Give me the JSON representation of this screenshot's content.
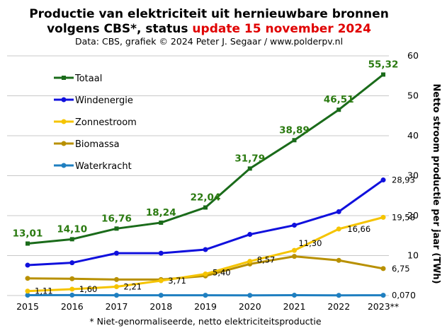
{
  "title_line1": "Productie van elektriciteit  uit hernieuwbare bronnen",
  "title_line2_prefix": "volgens CBS*, status ",
  "title_line2_highlight": "update 15 november 2024",
  "subtitle": "Data: CBS, grafiek © 2024 Peter J. Segaar / www.polderpv.nl",
  "footnote": "* Niet-genormaliseerde,  netto elektriciteitsproductie",
  "colors": {
    "totaal": "#1a6b1a",
    "wind": "#1010dd",
    "zon": "#f5c400",
    "biomassa": "#b89000",
    "water": "#1f7fc0",
    "grid": "#c8c8c8",
    "label_totaal": "#2a7a10",
    "highlight": "#e00000"
  },
  "chart_data": {
    "type": "line",
    "x": [
      "2015",
      "2016",
      "2017",
      "2018",
      "2019",
      "2020",
      "2021",
      "2022",
      "2023**"
    ],
    "ylabel": "Netto stroom productie per jaar (TWh)",
    "ylim": [
      0,
      60
    ],
    "yticks": [
      "0",
      "10",
      "20",
      "30",
      "40",
      "50",
      "60"
    ],
    "grid": true,
    "legend_position": "top-left",
    "series": [
      {
        "name": "Totaal",
        "key": "totaal",
        "values": [
          13.01,
          14.1,
          16.76,
          18.24,
          22.04,
          31.79,
          38.89,
          46.51,
          55.32
        ],
        "labels": [
          "13,01",
          "14,10",
          "16,76",
          "18,24",
          "22,04",
          "31,79",
          "38,89",
          "46,51",
          "55,32"
        ]
      },
      {
        "name": "Windenergie",
        "key": "wind",
        "values": [
          7.6,
          8.2,
          10.6,
          10.6,
          11.5,
          15.3,
          17.6,
          21.0,
          28.93
        ],
        "labels": [
          "",
          "",
          "",
          "",
          "",
          "",
          "",
          "",
          "28,93"
        ]
      },
      {
        "name": "Zonnestroom",
        "key": "zon",
        "values": [
          1.11,
          1.6,
          2.21,
          3.71,
          5.4,
          8.57,
          11.3,
          16.66,
          19.58
        ],
        "labels": [
          "1,11",
          "1,60",
          "2,21",
          "3,71",
          "5,40",
          "8,57",
          "11,30",
          "16,66",
          "19,58"
        ]
      },
      {
        "name": "Biomassa",
        "key": "biomassa",
        "values": [
          4.3,
          4.2,
          4.0,
          4.0,
          4.9,
          7.9,
          9.8,
          8.8,
          6.75
        ],
        "labels": [
          "",
          "",
          "",
          "",
          "",
          "",
          "",
          "",
          "6,75"
        ]
      },
      {
        "name": "Waterkracht",
        "key": "water",
        "values": [
          0.09,
          0.1,
          0.06,
          0.07,
          0.07,
          0.05,
          0.08,
          0.05,
          0.07
        ],
        "labels": [
          "",
          "",
          "",
          "",
          "",
          "",
          "",
          "",
          "0,07"
        ]
      }
    ]
  }
}
